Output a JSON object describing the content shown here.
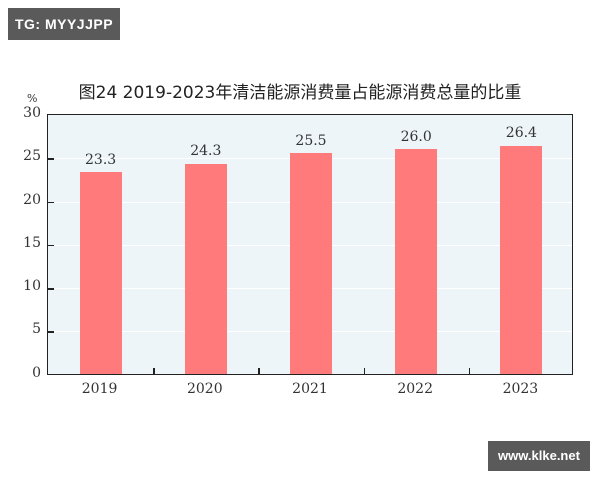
{
  "watermarks": {
    "top_left": "TG: MYYJJPP",
    "bottom_right": "www.klke.net"
  },
  "chart_data": {
    "type": "bar",
    "title": "图24   2019-2023年清洁能源消费量占能源消费总量的比重",
    "xlabel": "",
    "ylabel": "%",
    "categories": [
      "2019",
      "2020",
      "2021",
      "2022",
      "2023"
    ],
    "values": [
      23.3,
      24.3,
      25.5,
      26.0,
      26.4
    ],
    "value_labels": [
      "23.3",
      "24.3",
      "25.5",
      "26.0",
      "26.4"
    ],
    "ylim": [
      0,
      30
    ],
    "yticks": [
      "0",
      "5",
      "10",
      "15",
      "20",
      "25",
      "30"
    ],
    "grid": true,
    "legend": null,
    "colors": {
      "bar": "#ff7b7b",
      "plot_bg": "#edf5f8",
      "grid": "#ffffff",
      "axis": "#222222"
    }
  }
}
